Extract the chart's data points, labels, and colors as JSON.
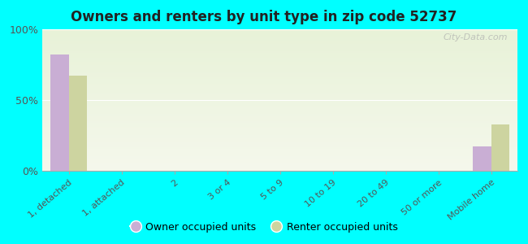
{
  "title": "Owners and renters by unit type in zip code 52737",
  "categories": [
    "1, detached",
    "1, attached",
    "2",
    "3 or 4",
    "5 to 9",
    "10 to 19",
    "20 to 49",
    "50 or more",
    "Mobile home"
  ],
  "owner_values": [
    82,
    0,
    0,
    0,
    0,
    0,
    0,
    0,
    17
  ],
  "renter_values": [
    67,
    0,
    0,
    0,
    0,
    0,
    0,
    0,
    33
  ],
  "owner_color": "#c9aed4",
  "renter_color": "#cdd4a0",
  "background_color": "#00ffff",
  "plot_bg_top": "#e8f2d8",
  "plot_bg_bottom": "#f5f8ec",
  "ylim": [
    0,
    100
  ],
  "yticks": [
    0,
    50,
    100
  ],
  "ytick_labels": [
    "0%",
    "50%",
    "100%"
  ],
  "bar_width": 0.35,
  "watermark": "City-Data.com",
  "legend_labels": [
    "Owner occupied units",
    "Renter occupied units"
  ],
  "title_color": "#222222",
  "tick_color": "#555555"
}
